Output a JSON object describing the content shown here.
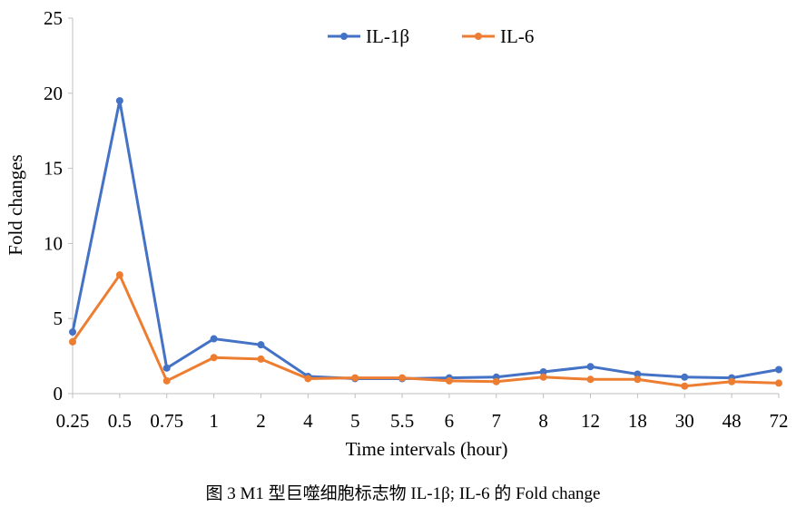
{
  "chart_data": {
    "type": "line",
    "categories": [
      "0.25",
      "0.5",
      "0.75",
      "1",
      "2",
      "4",
      "5",
      "5.5",
      "6",
      "7",
      "8",
      "12",
      "18",
      "30",
      "48",
      "72"
    ],
    "series": [
      {
        "name": "IL-1β",
        "color": "#4472C4",
        "values": [
          4.1,
          19.5,
          1.7,
          3.65,
          3.25,
          1.15,
          1.0,
          1.0,
          1.05,
          1.1,
          1.45,
          1.8,
          1.3,
          1.1,
          1.05,
          1.6
        ]
      },
      {
        "name": "IL-6",
        "color": "#ED7D31",
        "values": [
          3.45,
          7.9,
          0.85,
          2.4,
          2.3,
          1.0,
          1.05,
          1.05,
          0.85,
          0.8,
          1.1,
          0.95,
          0.95,
          0.5,
          0.8,
          0.7
        ]
      }
    ],
    "yticks": [
      "0",
      "5",
      "10",
      "15",
      "20",
      "25"
    ],
    "ylim": [
      0,
      25
    ],
    "xlabel": "Time intervals  (hour)",
    "ylabel": "Fold changes",
    "legend_position": "top-center",
    "grid": false
  },
  "caption": "图 3 M1 型巨噬细胞标志物 IL-1β; IL-6 的 Fold change"
}
